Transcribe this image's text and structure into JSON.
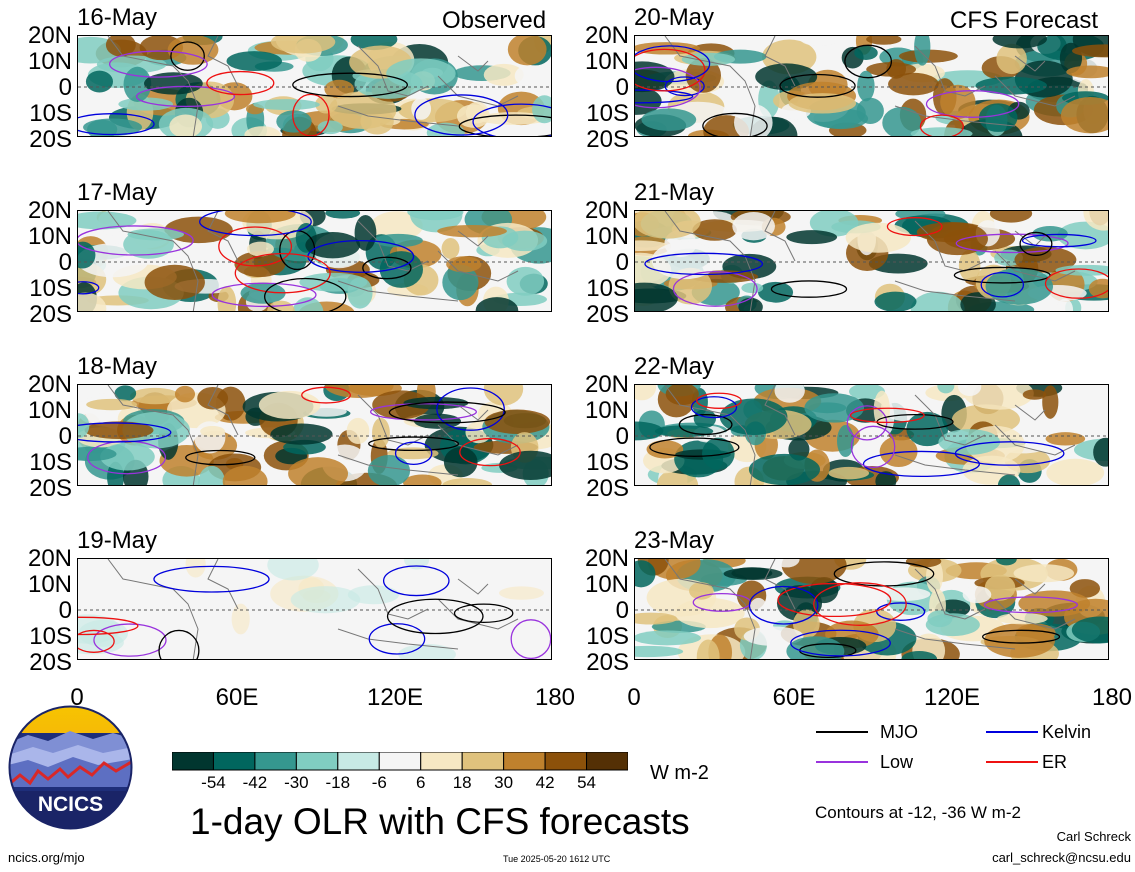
{
  "panels": {
    "observed": [
      {
        "date": "16-May",
        "empty": false
      },
      {
        "date": "17-May",
        "empty": false
      },
      {
        "date": "18-May",
        "empty": false
      },
      {
        "date": "19-May",
        "empty": true
      }
    ],
    "forecast": [
      {
        "date": "20-May"
      },
      {
        "date": "21-May"
      },
      {
        "date": "22-May"
      },
      {
        "date": "23-May"
      }
    ]
  },
  "labels": {
    "observed": "Observed",
    "forecast": "CFS Forecast"
  },
  "lat_ticks": [
    "20N",
    "10N",
    "0",
    "10S",
    "20S"
  ],
  "lon_ticks": [
    "0",
    "60E",
    "120E",
    "180"
  ],
  "colorbar": {
    "unit": "W m-2",
    "tick_labels": [
      "-54",
      "-42",
      "-30",
      "-18",
      "-6",
      "6",
      "18",
      "30",
      "42",
      "54"
    ],
    "colors": [
      "#01362f",
      "#01665e",
      "#35978f",
      "#80cdc1",
      "#c7eae5",
      "#f5f5f5",
      "#f6e8c3",
      "#dfc27d",
      "#bf812d",
      "#8c510a",
      "#543005"
    ]
  },
  "legend": {
    "items": [
      {
        "name": "MJO",
        "color": "#000000"
      },
      {
        "name": "Kelvin",
        "color": "#0000dd"
      },
      {
        "name": "Low",
        "color": "#9933dd"
      },
      {
        "name": "ER",
        "color": "#ee1111"
      }
    ],
    "note": "Contours at -12, -36 W m-2"
  },
  "title": "1-day OLR with CFS forecasts",
  "logo_text": "NCICS",
  "footer": {
    "url": "ncics.org/mjo",
    "timestamp": "Tue 2025-05-20 1612 UTC",
    "author": "Carl Schreck",
    "email": "carl_schreck@ncsu.edu"
  }
}
